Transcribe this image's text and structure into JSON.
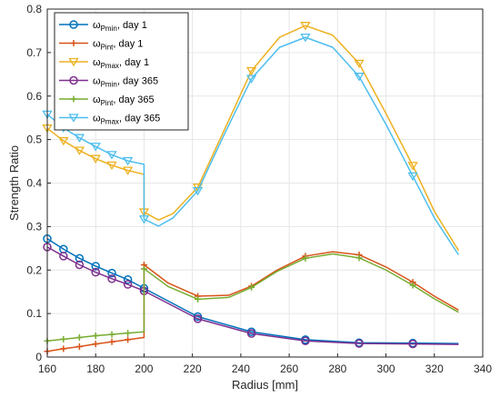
{
  "chart_data": {
    "type": "line",
    "xlabel": "Radius [mm]",
    "ylabel": "Strength Ratio",
    "xlim": [
      160,
      340
    ],
    "ylim": [
      0,
      0.8
    ],
    "xticks": [
      "160",
      "180",
      "200",
      "220",
      "240",
      "260",
      "280",
      "300",
      "320",
      "340"
    ],
    "yticks": [
      "0",
      "0.1",
      "0.2",
      "0.3",
      "0.4",
      "0.5",
      "0.6",
      "0.7",
      "0.8"
    ],
    "grid": true,
    "legend_position": "top-left",
    "series": [
      {
        "name_main": "ω",
        "name_sub": "Pmin",
        "name_suffix": ", day 1",
        "color": "#0072BD",
        "marker": "circle",
        "x": [
          160,
          166.7,
          173.3,
          180,
          186.7,
          193.3,
          200,
          222.2,
          244.4,
          266.7,
          288.9,
          311.1,
          330
        ],
        "y": [
          0.272,
          0.248,
          0.227,
          0.209,
          0.193,
          0.178,
          0.158,
          0.093,
          0.058,
          0.04,
          0.033,
          0.032,
          0.031
        ],
        "marker_idx": [
          0,
          1,
          2,
          3,
          4,
          5,
          6,
          7,
          8,
          9,
          10,
          11
        ]
      },
      {
        "name_main": "ω",
        "name_sub": "Pint",
        "name_suffix": ", day 1",
        "color": "#D95319",
        "marker": "plus",
        "x": [
          160,
          166.7,
          173.3,
          180,
          186.7,
          193.3,
          200,
          200,
          210,
          222.2,
          235,
          244.4,
          255,
          266.7,
          278,
          288.9,
          300,
          311.1,
          320,
          330
        ],
        "y": [
          0.013,
          0.019,
          0.024,
          0.03,
          0.035,
          0.04,
          0.045,
          0.212,
          0.17,
          0.14,
          0.142,
          0.163,
          0.2,
          0.232,
          0.242,
          0.235,
          0.207,
          0.172,
          0.14,
          0.108
        ],
        "marker_idx": [
          0,
          1,
          2,
          3,
          4,
          5,
          7,
          9,
          11,
          13,
          15,
          17
        ]
      },
      {
        "name_main": "ω",
        "name_sub": "Pmax",
        "name_suffix": ", day 1",
        "color": "#EDB120",
        "marker": "triangle-down",
        "x": [
          160,
          166.7,
          173.3,
          180,
          186.7,
          193.3,
          200,
          200,
          206,
          212,
          222.2,
          233,
          244.4,
          256,
          266.7,
          278,
          288.9,
          300,
          311.1,
          320,
          330
        ],
        "y": [
          0.526,
          0.497,
          0.475,
          0.456,
          0.441,
          0.429,
          0.42,
          0.333,
          0.315,
          0.33,
          0.39,
          0.52,
          0.658,
          0.735,
          0.762,
          0.74,
          0.675,
          0.56,
          0.44,
          0.335,
          0.245
        ],
        "marker_idx": [
          0,
          1,
          2,
          3,
          4,
          5,
          7,
          10,
          12,
          14,
          16,
          18
        ]
      },
      {
        "name_main": "ω",
        "name_sub": "Pmin",
        "name_suffix": ", day 365",
        "color": "#7E2F8E",
        "marker": "circle",
        "x": [
          160,
          166.7,
          173.3,
          180,
          186.7,
          193.3,
          200,
          222.2,
          244.4,
          266.7,
          288.9,
          311.1,
          330
        ],
        "y": [
          0.253,
          0.232,
          0.212,
          0.195,
          0.18,
          0.167,
          0.152,
          0.088,
          0.054,
          0.037,
          0.031,
          0.03,
          0.029
        ],
        "marker_idx": [
          0,
          1,
          2,
          3,
          4,
          5,
          6,
          7,
          8,
          9,
          10,
          11
        ]
      },
      {
        "name_main": "ω",
        "name_sub": "Pint",
        "name_suffix": ", day 365",
        "color": "#77AC30",
        "marker": "plus",
        "x": [
          160,
          166.7,
          173.3,
          180,
          186.7,
          193.3,
          200,
          200,
          210,
          222.2,
          235,
          244.4,
          255,
          266.7,
          278,
          288.9,
          300,
          311.1,
          320,
          330
        ],
        "y": [
          0.037,
          0.041,
          0.045,
          0.049,
          0.052,
          0.055,
          0.058,
          0.203,
          0.162,
          0.133,
          0.137,
          0.16,
          0.197,
          0.227,
          0.237,
          0.228,
          0.2,
          0.165,
          0.134,
          0.103
        ],
        "marker_idx": [
          0,
          1,
          2,
          3,
          4,
          5,
          7,
          9,
          11,
          13,
          15,
          17
        ]
      },
      {
        "name_main": "ω",
        "name_sub": "Pmax",
        "name_suffix": ", day 365",
        "color": "#4DBEEE",
        "marker": "triangle-down",
        "x": [
          160,
          166.7,
          173.3,
          180,
          186.7,
          193.3,
          200,
          200,
          206,
          212,
          222.2,
          233,
          244.4,
          256,
          266.7,
          278,
          288.9,
          300,
          311.1,
          320,
          330
        ],
        "y": [
          0.558,
          0.527,
          0.504,
          0.484,
          0.465,
          0.451,
          0.443,
          0.317,
          0.301,
          0.32,
          0.382,
          0.51,
          0.64,
          0.712,
          0.735,
          0.712,
          0.645,
          0.535,
          0.416,
          0.32,
          0.235
        ],
        "marker_idx": [
          0,
          1,
          2,
          3,
          4,
          5,
          7,
          10,
          12,
          14,
          16,
          18
        ]
      }
    ]
  }
}
